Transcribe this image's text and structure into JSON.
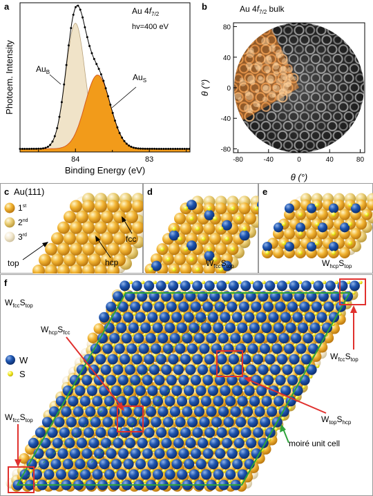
{
  "panels": {
    "a": {
      "label": "a",
      "title_main": "Au 4",
      "title_f": "f",
      "title_sub": "7/2",
      "photon": "hv=400 eV",
      "au_b": "Au",
      "au_b_sub": "B",
      "au_s": "Au",
      "au_s_sub": "S",
      "ylabel": "Photoem. Intensity",
      "xlabel": "Binding Energy (eV)"
    },
    "b": {
      "label": "b",
      "title_main": "Au 4",
      "title_f": "f",
      "title_sub": "7/2",
      "title_tail": " bulk",
      "ylabel": "θ (°)",
      "xlabel": "θ (°)"
    },
    "c": {
      "label": "c",
      "title": "Au(111)",
      "legend_1": "1",
      "legend_1_sup": "st",
      "legend_2": "2",
      "legend_2_sup": "nd",
      "legend_3": "3",
      "legend_3_sup": "rd",
      "site_top": "top",
      "site_hcp": "hcp",
      "site_fcc": "fcc"
    },
    "d": {
      "label": "d",
      "w": "W",
      "w_sub": "fcc",
      "s": "S",
      "s_sub": "top"
    },
    "e": {
      "label": "e",
      "w": "W",
      "w_sub": "hcp",
      "s": "S",
      "s_sub": "top"
    },
    "f": {
      "label": "f",
      "tl_w": "W",
      "tl_w_sub": "fcc",
      "tl_s": "S",
      "tl_s_sub": "top",
      "legend_w": "W",
      "legend_s": "S",
      "hcpfcc_w": "W",
      "hcpfcc_w_sub": "hcp",
      "hcpfcc_s": "S",
      "hcpfcc_s_sub": "fcc",
      "left_w": "W",
      "left_w_sub": "fcc",
      "left_s": "S",
      "left_s_sub": "top",
      "right_w": "W",
      "right_w_sub": "fcc",
      "right_s": "S",
      "right_s_sub": "top",
      "tophcp_w": "W",
      "tophcp_w_sub": "top",
      "tophcp_s": "S",
      "tophcp_s_sub": "hcp",
      "moire": "moiré unit cell"
    }
  },
  "chart_data": [
    {
      "type": "line",
      "title": "Au 4f7/2  hv=400 eV",
      "xlabel": "Binding Energy (eV)",
      "ylabel": "Photoem. Intensity",
      "xlim": [
        84.75,
        82.45
      ],
      "x_ticks": [
        "84",
        "83"
      ],
      "x_tick_values": [
        84,
        83
      ],
      "series": [
        {
          "name": "AuB",
          "center": 84.0,
          "width": 0.13,
          "amplitude": 0.8
        },
        {
          "name": "AuS",
          "center": 83.7,
          "width": 0.17,
          "amplitude": 0.47
        }
      ],
      "background": 0.02
    },
    {
      "type": "heatmap",
      "title": "Au 4f7/2 bulk",
      "xlabel": "θ (°)",
      "ylabel": "θ (°)",
      "xlim": [
        -90,
        90
      ],
      "ylim": [
        -90,
        90
      ],
      "x_ticks": [
        "-80",
        "-40",
        "0",
        "40",
        "80"
      ],
      "y_ticks": [
        "80",
        "40",
        "0",
        "-40",
        "-80"
      ],
      "tick_values": [
        -80,
        -40,
        0,
        40,
        80
      ],
      "radius": 85,
      "colored_sector_deg": [
        115,
        210
      ]
    }
  ],
  "colors": {
    "au_b_fill": "#f0e3c8",
    "au_s_fill": "#f29b1a",
    "au_s_line": "#d45a20",
    "tungsten": "#1b4fa0",
    "sulfur": "#f5ee2a",
    "au1": "#e9a01e",
    "au2": "#e8c56a",
    "au3": "#f4ead2",
    "red_box": "#e0302d",
    "moire": "#2ea33a",
    "orange_map": "#f08a30"
  }
}
